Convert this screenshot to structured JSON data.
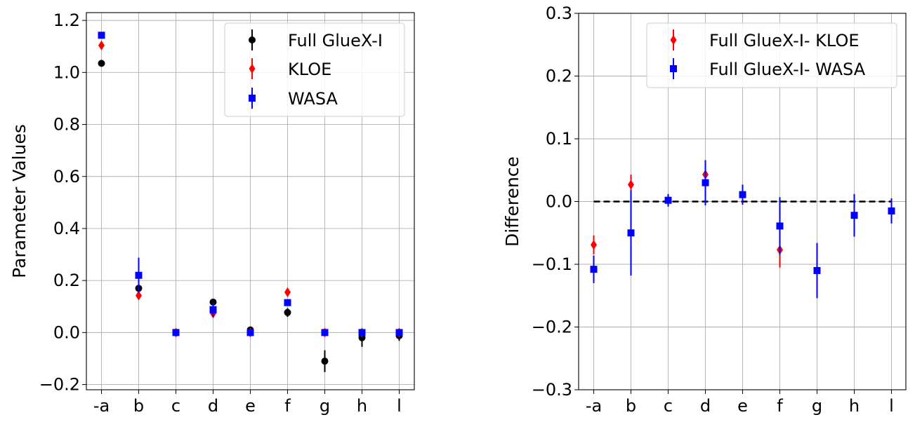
{
  "chart_data": [
    {
      "type": "scatter",
      "categories": [
        "-a",
        "b",
        "c",
        "d",
        "e",
        "f",
        "g",
        "h",
        "l"
      ],
      "xlabel": "",
      "ylabel": "Parameter Values",
      "ylim": [
        -0.22,
        1.23
      ],
      "yticks": [
        -0.2,
        0.0,
        0.2,
        0.4,
        0.6,
        0.8,
        1.0,
        1.2
      ],
      "ytick_labels": [
        "−0.2",
        "0.0",
        "0.2",
        "0.4",
        "0.6",
        "0.8",
        "1.0",
        "1.2"
      ],
      "grid": true,
      "legend_position": "top-right",
      "series": [
        {
          "name": "Full GlueX-I",
          "color": "#000000",
          "marker": "circle",
          "values": [
            1.035,
            0.17,
            0.0,
            0.117,
            0.01,
            0.077,
            -0.11,
            -0.02,
            -0.012
          ],
          "errors": [
            0.004,
            0.015,
            0.003,
            0.01,
            0.01,
            0.017,
            0.042,
            0.035,
            0.02
          ]
        },
        {
          "name": "KLOE",
          "color": "#ff0000",
          "marker": "diamond",
          "values": [
            1.104,
            0.142,
            0.0,
            0.073,
            0.0,
            0.155,
            0.0,
            0.0,
            0.0
          ],
          "errors": [
            0.005,
            0.01,
            0.0,
            0.007,
            0.0,
            0.011,
            0.0,
            0.0,
            0.0
          ]
        },
        {
          "name": "WASA",
          "color": "#0000ff",
          "marker": "square",
          "values": [
            1.143,
            0.22,
            0.0,
            0.088,
            0.0,
            0.115,
            0.0,
            0.0,
            0.0
          ],
          "errors": [
            0.01,
            0.068,
            0.0,
            0.028,
            0.0,
            0.01,
            0.0,
            0.0,
            0.0
          ]
        }
      ]
    },
    {
      "type": "scatter",
      "categories": [
        "-a",
        "b",
        "c",
        "d",
        "e",
        "f",
        "g",
        "h",
        "l"
      ],
      "xlabel": "",
      "ylabel": "Difference",
      "ylim": [
        -0.3,
        0.3
      ],
      "yticks": [
        -0.3,
        -0.2,
        -0.1,
        0.0,
        0.1,
        0.2,
        0.3
      ],
      "ytick_labels": [
        "−0.3",
        "−0.2",
        "−0.1",
        "0.0",
        "0.1",
        "0.2",
        "0.3"
      ],
      "reference_line": 0.0,
      "grid": true,
      "legend_position": "top-right",
      "series": [
        {
          "name": "Full GlueX-I- KLOE",
          "color": "#ff0000",
          "marker": "diamond",
          "values": [
            -0.069,
            0.027,
            null,
            0.043,
            null,
            -0.077,
            null,
            null,
            null
          ],
          "errors": [
            0.015,
            0.016,
            null,
            0.013,
            null,
            0.028,
            null,
            null,
            null
          ]
        },
        {
          "name": "Full GlueX-I- WASA",
          "color": "#0000ff",
          "marker": "square",
          "values": [
            -0.108,
            -0.05,
            0.002,
            0.03,
            0.011,
            -0.039,
            -0.11,
            -0.022,
            -0.015
          ],
          "errors": [
            0.022,
            0.068,
            0.01,
            0.036,
            0.016,
            0.046,
            0.044,
            0.034,
            0.02
          ]
        }
      ]
    }
  ]
}
